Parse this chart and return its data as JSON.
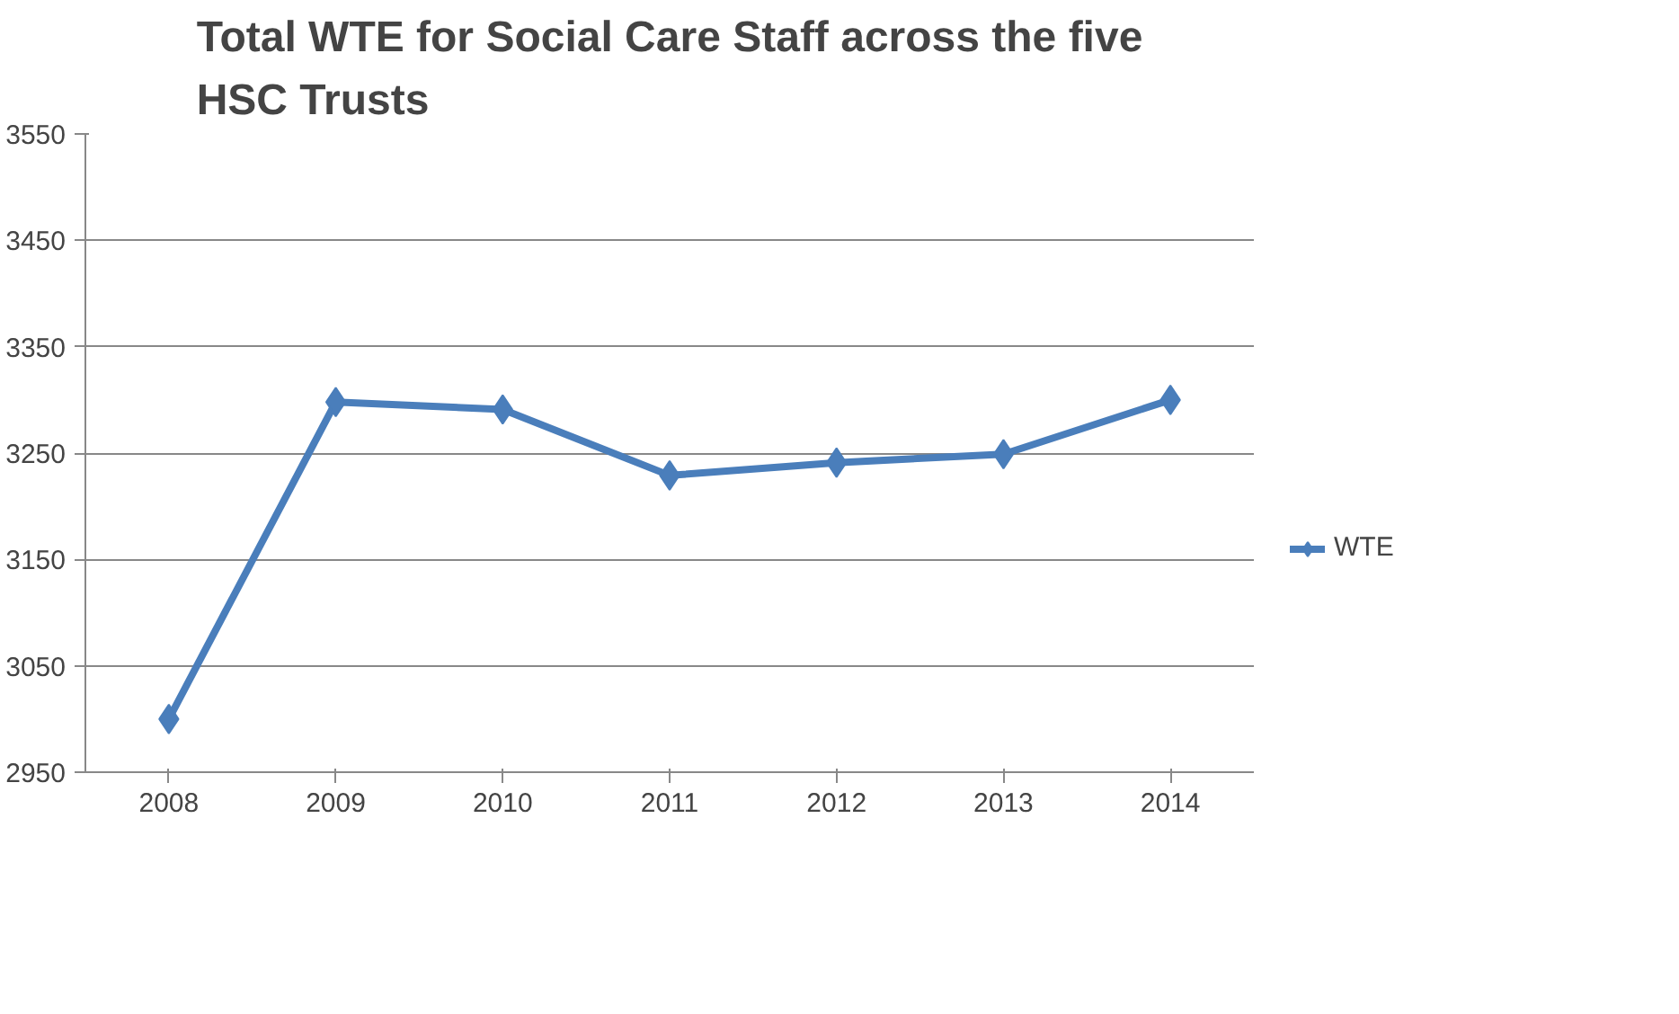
{
  "chart_data": {
    "type": "line",
    "title": "Total WTE for Social Care Staff across the five HSC Trusts",
    "categories": [
      "2008",
      "2009",
      "2010",
      "2011",
      "2012",
      "2013",
      "2014"
    ],
    "series": [
      {
        "name": "WTE",
        "color": "#4a7ebb",
        "values": [
          3000,
          3298,
          3291,
          3229,
          3241,
          3249,
          3300
        ]
      }
    ],
    "ylim": [
      2950,
      3550
    ],
    "yticks": [
      2950,
      3050,
      3150,
      3250,
      3350,
      3450,
      3550
    ],
    "grid": "y",
    "legend": "right",
    "marker": "diamond",
    "line_style": "solid"
  }
}
